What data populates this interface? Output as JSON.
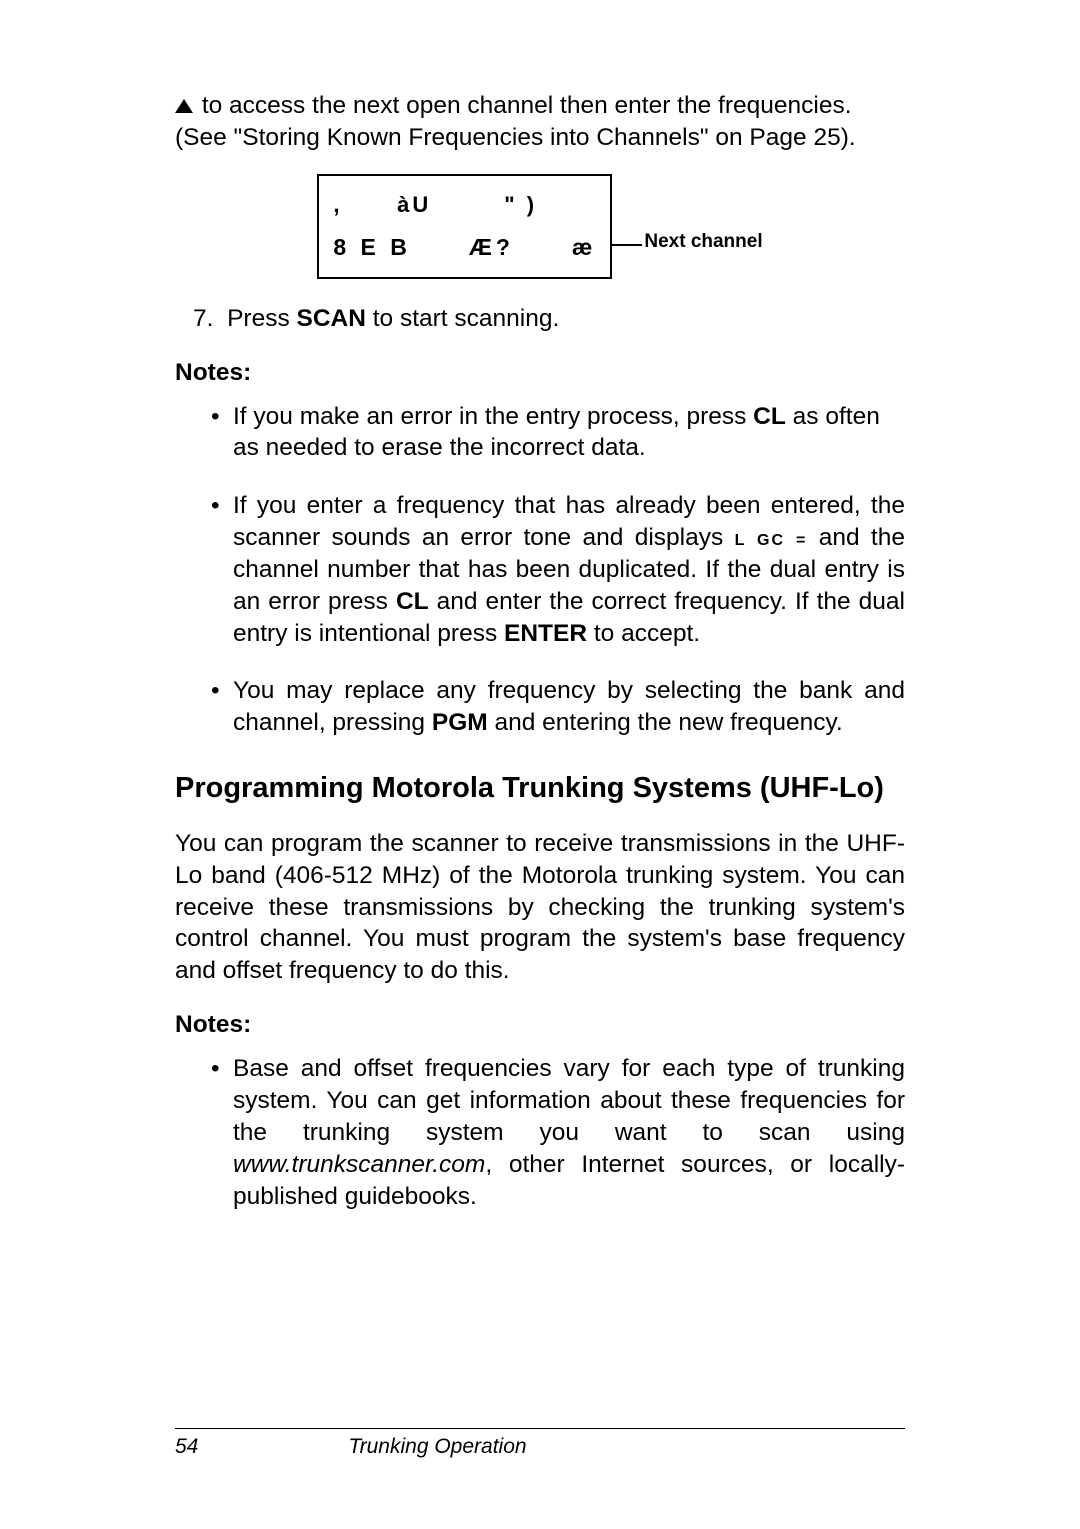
{
  "intro": {
    "text": "to access the next open channel then enter the frequencies. (See \"Storing Known Frequencies into Channels\" on Page 25)."
  },
  "display": {
    "row1_left": ",",
    "row1_mid": "àU",
    "row1_right": "\" )",
    "row2_left": "8 E B",
    "row2_mid": "Æ?",
    "row2_right": "æ",
    "label": "Next channel"
  },
  "step7": {
    "num": "7.",
    "text_a": "Press ",
    "key": "SCAN",
    "text_b": " to start scanning."
  },
  "notes1_label": "Notes:",
  "note1a": {
    "t1": "If you make an error in the entry process, press ",
    "k1": "CL",
    "t2": " as often as needed to erase the incorrect data."
  },
  "note1b": {
    "t1": "If you enter a frequency that has already been entered, the scanner sounds an error tone and displays ",
    "disp": "L GC =",
    "t2": " and the channel number that has been duplicated. If the dual entry is an error press ",
    "k1": "CL",
    "t3": " and enter the correct frequency. If the dual entry is intentional press ",
    "k2": "ENTER",
    "t4": " to accept."
  },
  "note1c": {
    "t1": "You may replace any frequency by selecting the bank and channel, pressing ",
    "k1": "PGM",
    "t2": " and entering the new frequency."
  },
  "heading": "Programming Motorola Trunking Systems (UHF-Lo)",
  "para2": "You can program the scanner to receive transmissions in the UHF-Lo band (406-512 MHz) of the Motorola trunking system. You can receive these transmissions by checking the trunking system's control channel. You must program the system's base frequency and offset frequency to do this.",
  "notes2_label": "Notes:",
  "note2a": {
    "t1": "Base and offset frequencies vary for each type of trunking system. You can get information about these frequencies for the trunking system you want to scan using ",
    "url": "www.trunkscanner.com",
    "t2": ", other Internet sources, or locally-published guidebooks."
  },
  "footer": {
    "page": "54",
    "title": "Trunking Operation"
  }
}
